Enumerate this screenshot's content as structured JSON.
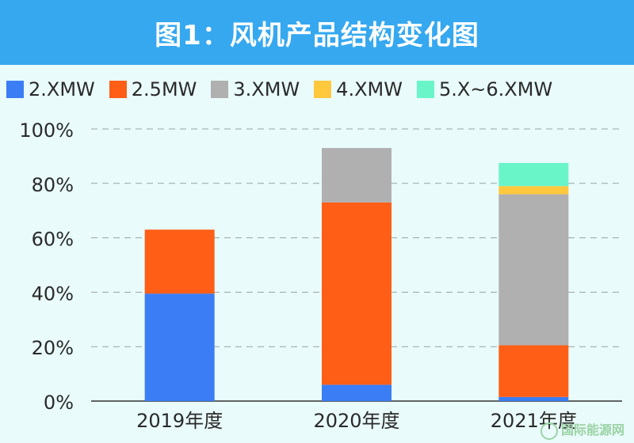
{
  "header": {
    "title": "图1：风机产品结构变化图"
  },
  "watermark": {
    "text": "国际能源网"
  },
  "chart_data": {
    "type": "bar",
    "stacked": true,
    "categories": [
      "2019年度",
      "2020年度",
      "2021年度"
    ],
    "series": [
      {
        "name": "2.XMW",
        "color": "#3b7df5",
        "values": [
          39.5,
          6,
          1.5
        ]
      },
      {
        "name": "2.5MW",
        "color": "#ff5e16",
        "values": [
          23.5,
          67,
          19
        ]
      },
      {
        "name": "3.XMW",
        "color": "#b0b0b0",
        "values": [
          0,
          20,
          55.5
        ]
      },
      {
        "name": "4.XMW",
        "color": "#ffc83d",
        "values": [
          0,
          0,
          3
        ]
      },
      {
        "name": "5.X~6.XMW",
        "color": "#6af5c8",
        "values": [
          0,
          0,
          8.5
        ]
      }
    ],
    "yticks": [
      "0%",
      "20%",
      "40%",
      "60%",
      "80%",
      "100%"
    ],
    "ylim": [
      0,
      100
    ],
    "grid": true,
    "legend": "top"
  }
}
